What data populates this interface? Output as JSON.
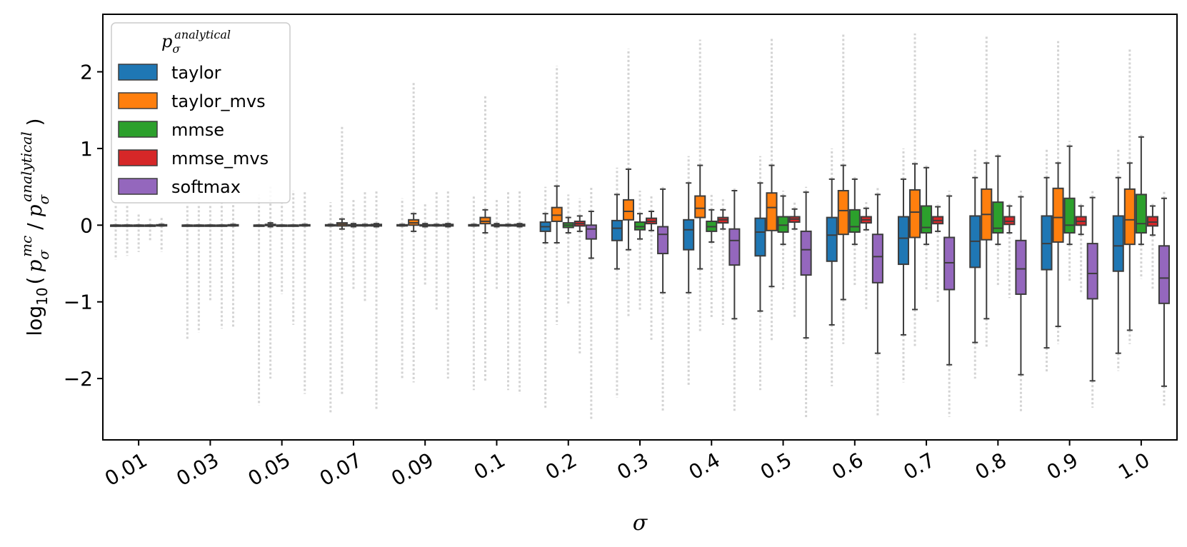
{
  "chart_data": {
    "type": "boxplot",
    "title": "",
    "xlabel": "σ",
    "ylabel_parts": {
      "prefix": "log",
      "subscript": "10",
      "open": "(",
      "num_base": "p",
      "num_sub": "σ",
      "num_sup": "mc",
      "slash": "/",
      "den_base": "p",
      "den_sub": "σ",
      "den_sup": "analytical",
      "close": ")"
    },
    "ylim": [
      -2.8,
      2.75
    ],
    "yticks": [
      -2,
      -1,
      0,
      1,
      2
    ],
    "ytick_labels": [
      "−2",
      "−1",
      "0",
      "1",
      "2"
    ],
    "categories": [
      "0.01",
      "0.03",
      "0.05",
      "0.07",
      "0.09",
      "0.1",
      "0.2",
      "0.3",
      "0.4",
      "0.5",
      "0.6",
      "0.7",
      "0.8",
      "0.9",
      "1.0"
    ],
    "legend": {
      "title": {
        "base": "p",
        "sub": "σ",
        "sup": "analytical"
      },
      "placement": "top-left"
    },
    "outlier_color": "#d3d3d3",
    "series": [
      {
        "name": "taylor",
        "color": "#1f77b4",
        "boxes": [
          {
            "q1": 0,
            "med": 0,
            "q3": 0,
            "wlo": 0,
            "whi": 0,
            "omin": -0.45,
            "omax": 0.25
          },
          {
            "q1": 0,
            "med": 0,
            "q3": 0,
            "wlo": 0,
            "whi": 0,
            "omin": -1.5,
            "omax": 0.25
          },
          {
            "q1": 0,
            "med": 0,
            "q3": 0,
            "wlo": 0,
            "whi": 0,
            "omin": -2.35,
            "omax": 0.4
          },
          {
            "q1": -0.005,
            "med": 0,
            "q3": 0.005,
            "wlo": -0.01,
            "whi": 0.01,
            "omin": -2.45,
            "omax": 0.3
          },
          {
            "q1": -0.005,
            "med": 0,
            "q3": 0.005,
            "wlo": -0.01,
            "whi": 0.01,
            "omin": -2.0,
            "omax": 0.35
          },
          {
            "q1": -0.005,
            "med": 0,
            "q3": 0.005,
            "wlo": -0.01,
            "whi": 0.01,
            "omin": -2.15,
            "omax": 0.4
          },
          {
            "q1": -0.08,
            "med": -0.02,
            "q3": 0.04,
            "wlo": -0.23,
            "whi": 0.15,
            "omin": -2.38,
            "omax": 0.5
          },
          {
            "q1": -0.2,
            "med": -0.04,
            "q3": 0.06,
            "wlo": -0.57,
            "whi": 0.4,
            "omin": -2.25,
            "omax": 0.75
          },
          {
            "q1": -0.32,
            "med": -0.06,
            "q3": 0.07,
            "wlo": -0.88,
            "whi": 0.55,
            "omin": -2.1,
            "omax": 0.9
          },
          {
            "q1": -0.4,
            "med": -0.09,
            "q3": 0.09,
            "wlo": -1.12,
            "whi": 0.55,
            "omin": -2.15,
            "omax": 0.9
          },
          {
            "q1": -0.47,
            "med": -0.13,
            "q3": 0.1,
            "wlo": -1.3,
            "whi": 0.6,
            "omin": -2.1,
            "omax": 1.0
          },
          {
            "q1": -0.51,
            "med": -0.17,
            "q3": 0.11,
            "wlo": -1.43,
            "whi": 0.6,
            "omin": -2.05,
            "omax": 1.0
          },
          {
            "q1": -0.55,
            "med": -0.21,
            "q3": 0.12,
            "wlo": -1.53,
            "whi": 0.62,
            "omin": -2.0,
            "omax": 1.0
          },
          {
            "q1": -0.58,
            "med": -0.24,
            "q3": 0.12,
            "wlo": -1.6,
            "whi": 0.62,
            "omin": -1.92,
            "omax": 1.0
          },
          {
            "q1": -0.6,
            "med": -0.27,
            "q3": 0.12,
            "wlo": -1.67,
            "whi": 0.62,
            "omin": -1.9,
            "omax": 1.0
          }
        ]
      },
      {
        "name": "taylor_mvs",
        "color": "#ff7f0e",
        "boxes": [
          {
            "q1": 0,
            "med": 0,
            "q3": 0,
            "wlo": 0,
            "whi": 0,
            "omin": -0.4,
            "omax": 0.25
          },
          {
            "q1": 0,
            "med": 0,
            "q3": 0,
            "wlo": 0,
            "whi": 0,
            "omin": -1.4,
            "omax": 0.25
          },
          {
            "q1": -0.005,
            "med": 0,
            "q3": 0.01,
            "wlo": -0.02,
            "whi": 0.03,
            "omin": -2.0,
            "omax": 0.5
          },
          {
            "q1": -0.01,
            "med": 0.01,
            "q3": 0.03,
            "wlo": -0.05,
            "whi": 0.08,
            "omin": -2.2,
            "omax": 1.3
          },
          {
            "q1": 0,
            "med": 0.03,
            "q3": 0.07,
            "wlo": -0.08,
            "whi": 0.15,
            "omin": -2.05,
            "omax": 1.88
          },
          {
            "q1": 0.02,
            "med": 0.05,
            "q3": 0.1,
            "wlo": -0.1,
            "whi": 0.2,
            "omin": -2.05,
            "omax": 1.7
          },
          {
            "q1": 0.05,
            "med": 0.13,
            "q3": 0.23,
            "wlo": -0.23,
            "whi": 0.51,
            "omin": -1.3,
            "omax": 2.08
          },
          {
            "q1": 0.07,
            "med": 0.18,
            "q3": 0.33,
            "wlo": -0.32,
            "whi": 0.73,
            "omin": -1.2,
            "omax": 2.3
          },
          {
            "q1": 0.1,
            "med": 0.22,
            "q3": 0.38,
            "wlo": -0.57,
            "whi": 0.78,
            "omin": -1.4,
            "omax": 2.42
          },
          {
            "q1": -0.07,
            "med": 0.23,
            "q3": 0.42,
            "wlo": -0.8,
            "whi": 0.78,
            "omin": -1.5,
            "omax": 2.45
          },
          {
            "q1": -0.12,
            "med": 0.19,
            "q3": 0.45,
            "wlo": -0.97,
            "whi": 0.78,
            "omin": -1.55,
            "omax": 2.5
          },
          {
            "q1": -0.16,
            "med": 0.17,
            "q3": 0.46,
            "wlo": -1.1,
            "whi": 0.8,
            "omin": -1.6,
            "omax": 2.5
          },
          {
            "q1": -0.19,
            "med": 0.14,
            "q3": 0.47,
            "wlo": -1.22,
            "whi": 0.81,
            "omin": -1.6,
            "omax": 2.48
          },
          {
            "q1": -0.22,
            "med": 0.1,
            "q3": 0.48,
            "wlo": -1.32,
            "whi": 0.81,
            "omin": -1.55,
            "omax": 2.4
          },
          {
            "q1": -0.25,
            "med": 0.07,
            "q3": 0.47,
            "wlo": -1.37,
            "whi": 0.81,
            "omin": -1.55,
            "omax": 2.3
          }
        ]
      },
      {
        "name": "mmse",
        "color": "#2ca02c",
        "boxes": [
          {
            "q1": 0,
            "med": 0,
            "q3": 0,
            "wlo": 0,
            "whi": 0,
            "omin": -0.35,
            "omax": 0.15
          },
          {
            "q1": 0,
            "med": 0,
            "q3": 0,
            "wlo": 0,
            "whi": 0,
            "omin": -1.0,
            "omax": 0.25
          },
          {
            "q1": 0,
            "med": 0,
            "q3": 0,
            "wlo": 0,
            "whi": 0,
            "omin": -0.9,
            "omax": 0.3
          },
          {
            "q1": -0.005,
            "med": 0,
            "q3": 0.005,
            "wlo": -0.02,
            "whi": 0.02,
            "omin": -0.85,
            "omax": 0.35
          },
          {
            "q1": -0.005,
            "med": 0,
            "q3": 0.005,
            "wlo": -0.02,
            "whi": 0.02,
            "omin": -0.8,
            "omax": 0.3
          },
          {
            "q1": -0.005,
            "med": 0,
            "q3": 0.005,
            "wlo": -0.02,
            "whi": 0.02,
            "omin": -0.85,
            "omax": 0.35
          },
          {
            "q1": -0.03,
            "med": 0,
            "q3": 0.03,
            "wlo": -0.1,
            "whi": 0.1,
            "omin": -1.05,
            "omax": 0.4
          },
          {
            "q1": -0.06,
            "med": -0.02,
            "q3": 0.04,
            "wlo": -0.18,
            "whi": 0.15,
            "omin": -1.1,
            "omax": 0.45
          },
          {
            "q1": -0.08,
            "med": -0.02,
            "q3": 0.05,
            "wlo": -0.22,
            "whi": 0.2,
            "omin": -1.2,
            "omax": 0.4
          },
          {
            "q1": -0.09,
            "med": 0,
            "q3": 0.11,
            "wlo": -0.25,
            "whi": 0.38,
            "omin": -0.85,
            "omax": 0.45
          },
          {
            "q1": -0.09,
            "med": -0.02,
            "q3": 0.2,
            "wlo": -0.25,
            "whi": 0.6,
            "omin": -0.8,
            "omax": 0.65
          },
          {
            "q1": -0.1,
            "med": -0.03,
            "q3": 0.25,
            "wlo": -0.25,
            "whi": 0.75,
            "omin": -0.85,
            "omax": 0.8
          },
          {
            "q1": -0.1,
            "med": -0.04,
            "q3": 0.3,
            "wlo": -0.25,
            "whi": 0.9,
            "omin": -0.8,
            "omax": 0.95
          },
          {
            "q1": -0.1,
            "med": 0,
            "q3": 0.35,
            "wlo": -0.25,
            "whi": 1.03,
            "omin": -0.75,
            "omax": 1.1
          },
          {
            "q1": -0.1,
            "med": 0.02,
            "q3": 0.4,
            "wlo": -0.25,
            "whi": 1.15,
            "omin": -0.7,
            "omax": 1.2
          }
        ]
      },
      {
        "name": "mmse_mvs",
        "color": "#d62728",
        "boxes": [
          {
            "q1": 0,
            "med": 0,
            "q3": 0,
            "wlo": 0,
            "whi": 0,
            "omin": -0.2,
            "omax": 0.1
          },
          {
            "q1": 0,
            "med": 0,
            "q3": 0,
            "wlo": 0,
            "whi": 0,
            "omin": -1.35,
            "omax": 0.3
          },
          {
            "q1": 0,
            "med": 0,
            "q3": 0,
            "wlo": 0,
            "whi": 0,
            "omin": -1.3,
            "omax": 0.45
          },
          {
            "q1": -0.005,
            "med": 0,
            "q3": 0.005,
            "wlo": -0.01,
            "whi": 0.01,
            "omin": -1.0,
            "omax": 0.45
          },
          {
            "q1": -0.005,
            "med": 0,
            "q3": 0.005,
            "wlo": -0.01,
            "whi": 0.01,
            "omin": -1.1,
            "omax": 0.45
          },
          {
            "q1": -0.005,
            "med": 0,
            "q3": 0.005,
            "wlo": -0.01,
            "whi": 0.01,
            "omin": -2.15,
            "omax": 0.45
          },
          {
            "q1": -0.01,
            "med": 0.02,
            "q3": 0.05,
            "wlo": -0.08,
            "whi": 0.12,
            "omin": -1.7,
            "omax": 0.35
          },
          {
            "q1": 0.02,
            "med": 0.05,
            "q3": 0.09,
            "wlo": -0.07,
            "whi": 0.18,
            "omin": -1.5,
            "omax": 0.4
          },
          {
            "q1": 0.03,
            "med": 0.07,
            "q3": 0.1,
            "wlo": -0.05,
            "whi": 0.2,
            "omin": -1.3,
            "omax": 0.35
          },
          {
            "q1": 0.04,
            "med": 0.08,
            "q3": 0.11,
            "wlo": -0.05,
            "whi": 0.21,
            "omin": -1.2,
            "omax": 0.3
          },
          {
            "q1": 0.03,
            "med": 0.07,
            "q3": 0.11,
            "wlo": -0.06,
            "whi": 0.22,
            "omin": -1.1,
            "omax": 0.3
          },
          {
            "q1": 0.02,
            "med": 0.06,
            "q3": 0.11,
            "wlo": -0.08,
            "whi": 0.24,
            "omin": -1.0,
            "omax": 0.3
          },
          {
            "q1": 0.01,
            "med": 0.05,
            "q3": 0.11,
            "wlo": -0.1,
            "whi": 0.25,
            "omin": -0.95,
            "omax": 0.3
          },
          {
            "q1": 0.0,
            "med": 0.05,
            "q3": 0.11,
            "wlo": -0.12,
            "whi": 0.25,
            "omin": -0.9,
            "omax": 0.3
          },
          {
            "q1": -0.01,
            "med": 0.04,
            "q3": 0.11,
            "wlo": -0.13,
            "whi": 0.25,
            "omin": -0.85,
            "omax": 0.3
          }
        ]
      },
      {
        "name": "softmax",
        "color": "#9467bd",
        "boxes": [
          {
            "q1": -0.005,
            "med": 0,
            "q3": 0.005,
            "wlo": -0.01,
            "whi": 0.01,
            "omin": -0.35,
            "omax": 0.1
          },
          {
            "q1": -0.005,
            "med": 0,
            "q3": 0.005,
            "wlo": -0.01,
            "whi": 0.01,
            "omin": -1.35,
            "omax": 0.3
          },
          {
            "q1": -0.005,
            "med": 0,
            "q3": 0.005,
            "wlo": -0.01,
            "whi": 0.01,
            "omin": -2.2,
            "omax": 0.45
          },
          {
            "q1": -0.01,
            "med": 0,
            "q3": 0.01,
            "wlo": -0.02,
            "whi": 0.02,
            "omin": -2.4,
            "omax": 0.45
          },
          {
            "q1": -0.01,
            "med": 0,
            "q3": 0.01,
            "wlo": -0.02,
            "whi": 0.02,
            "omin": -2.0,
            "omax": 0.45
          },
          {
            "q1": -0.01,
            "med": 0,
            "q3": 0.01,
            "wlo": -0.02,
            "whi": 0.02,
            "omin": -2.2,
            "omax": 0.45
          },
          {
            "q1": -0.18,
            "med": -0.05,
            "q3": 0,
            "wlo": -0.43,
            "whi": 0.18,
            "omin": -2.55,
            "omax": 0.5
          },
          {
            "q1": -0.37,
            "med": -0.12,
            "q3": -0.02,
            "wlo": -0.88,
            "whi": 0.47,
            "omin": -2.42,
            "omax": 0.5
          },
          {
            "q1": -0.52,
            "med": -0.2,
            "q3": -0.05,
            "wlo": -1.22,
            "whi": 0.45,
            "omin": -2.42,
            "omax": 0.5
          },
          {
            "q1": -0.65,
            "med": -0.32,
            "q3": -0.08,
            "wlo": -1.47,
            "whi": 0.43,
            "omin": -2.52,
            "omax": 0.5
          },
          {
            "q1": -0.75,
            "med": -0.41,
            "q3": -0.12,
            "wlo": -1.67,
            "whi": 0.4,
            "omin": -2.5,
            "omax": 0.5
          },
          {
            "q1": -0.84,
            "med": -0.49,
            "q3": -0.16,
            "wlo": -1.82,
            "whi": 0.38,
            "omin": -2.5,
            "omax": 0.45
          },
          {
            "q1": -0.9,
            "med": -0.57,
            "q3": -0.2,
            "wlo": -1.95,
            "whi": 0.37,
            "omin": -2.45,
            "omax": 0.45
          },
          {
            "q1": -0.96,
            "med": -0.63,
            "q3": -0.24,
            "wlo": -2.03,
            "whi": 0.36,
            "omin": -2.38,
            "omax": 0.45
          },
          {
            "q1": -1.02,
            "med": -0.69,
            "q3": -0.27,
            "wlo": -2.1,
            "whi": 0.35,
            "omin": -2.35,
            "omax": 0.45
          }
        ]
      }
    ]
  }
}
